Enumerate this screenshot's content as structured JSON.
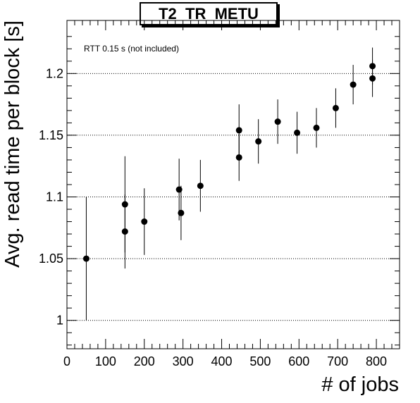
{
  "chart_data": {
    "type": "scatter",
    "title": "T2_TR_METU",
    "xlabel": "# of jobs",
    "ylabel": "Avg. read time per block [s]",
    "annotation": "RTT 0.15 s (not included)",
    "xlim": [
      0,
      860
    ],
    "ylim": [
      0.977,
      1.243
    ],
    "x_ticks": [
      0,
      100,
      200,
      300,
      400,
      500,
      600,
      700,
      800
    ],
    "y_ticks": [
      1,
      1.05,
      1.1,
      1.15,
      1.2
    ],
    "y_tick_labels": [
      "1",
      "1.05",
      "1.1",
      "1.15",
      "1.2"
    ],
    "grid": "y-dotted",
    "points": [
      {
        "x": 50,
        "y": 1.05,
        "err": 0.05
      },
      {
        "x": 150,
        "y": 1.072,
        "err": 0.03
      },
      {
        "x": 150,
        "y": 1.094,
        "err": 0.039
      },
      {
        "x": 200,
        "y": 1.08,
        "err": 0.027
      },
      {
        "x": 290,
        "y": 1.106,
        "err": 0.025
      },
      {
        "x": 295,
        "y": 1.087,
        "err": 0.022
      },
      {
        "x": 345,
        "y": 1.109,
        "err": 0.021
      },
      {
        "x": 445,
        "y": 1.132,
        "err": 0.019
      },
      {
        "x": 445,
        "y": 1.154,
        "err": 0.021
      },
      {
        "x": 495,
        "y": 1.145,
        "err": 0.018
      },
      {
        "x": 545,
        "y": 1.161,
        "err": 0.018
      },
      {
        "x": 595,
        "y": 1.152,
        "err": 0.017
      },
      {
        "x": 645,
        "y": 1.156,
        "err": 0.016
      },
      {
        "x": 695,
        "y": 1.172,
        "err": 0.016
      },
      {
        "x": 740,
        "y": 1.191,
        "err": 0.016
      },
      {
        "x": 790,
        "y": 1.196,
        "err": 0.015
      },
      {
        "x": 790,
        "y": 1.206,
        "err": 0.015
      }
    ]
  }
}
